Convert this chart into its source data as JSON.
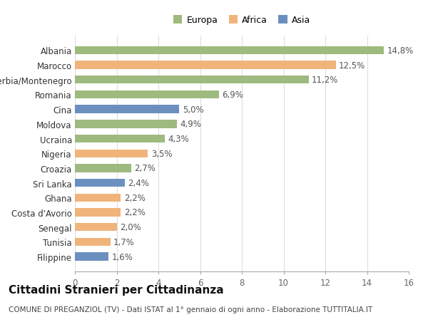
{
  "categories": [
    "Filippine",
    "Tunisia",
    "Senegal",
    "Costa d'Avorio",
    "Ghana",
    "Sri Lanka",
    "Croazia",
    "Nigeria",
    "Ucraina",
    "Moldova",
    "Cina",
    "Romania",
    "Serbia/Montenegro",
    "Marocco",
    "Albania"
  ],
  "values": [
    1.6,
    1.7,
    2.0,
    2.2,
    2.2,
    2.4,
    2.7,
    3.5,
    4.3,
    4.9,
    5.0,
    6.9,
    11.2,
    12.5,
    14.8
  ],
  "continents": [
    "Asia",
    "Africa",
    "Africa",
    "Africa",
    "Africa",
    "Asia",
    "Europa",
    "Africa",
    "Europa",
    "Europa",
    "Asia",
    "Europa",
    "Europa",
    "Africa",
    "Europa"
  ],
  "continent_colors": {
    "Europa": "#9eba7e",
    "Africa": "#f0b47a",
    "Asia": "#6b8fbf"
  },
  "legend_labels": [
    "Europa",
    "Africa",
    "Asia"
  ],
  "legend_colors": [
    "#9eba7e",
    "#f0b47a",
    "#6b8fbf"
  ],
  "title": "Cittadini Stranieri per Cittadinanza",
  "subtitle": "COMUNE DI PREGANZIOL (TV) - Dati ISTAT al 1° gennaio di ogni anno - Elaborazione TUTTITALIA.IT",
  "xlim": [
    0,
    16
  ],
  "xticks": [
    0,
    2,
    4,
    6,
    8,
    10,
    12,
    14,
    16
  ],
  "bar_height": 0.55,
  "background_color": "#ffffff",
  "grid_color": "#dddddd",
  "label_fontsize": 8.5,
  "tick_fontsize": 8.5,
  "title_fontsize": 11,
  "subtitle_fontsize": 7.5
}
